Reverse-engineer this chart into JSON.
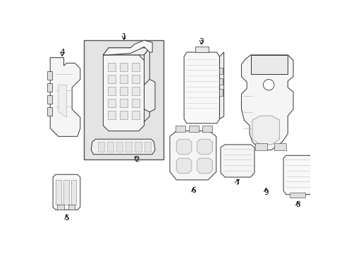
{
  "background_color": "#ffffff",
  "line_color": "#333333",
  "text_color": "#000000",
  "fig_width": 4.89,
  "fig_height": 3.6,
  "dpi": 100,
  "box1_fill": "#e8e8e8",
  "box1_edge": "#555555",
  "part_fill": "#f8f8f8",
  "part_edge": "#333333",
  "lw": 0.7,
  "label_fontsize": 7.5
}
